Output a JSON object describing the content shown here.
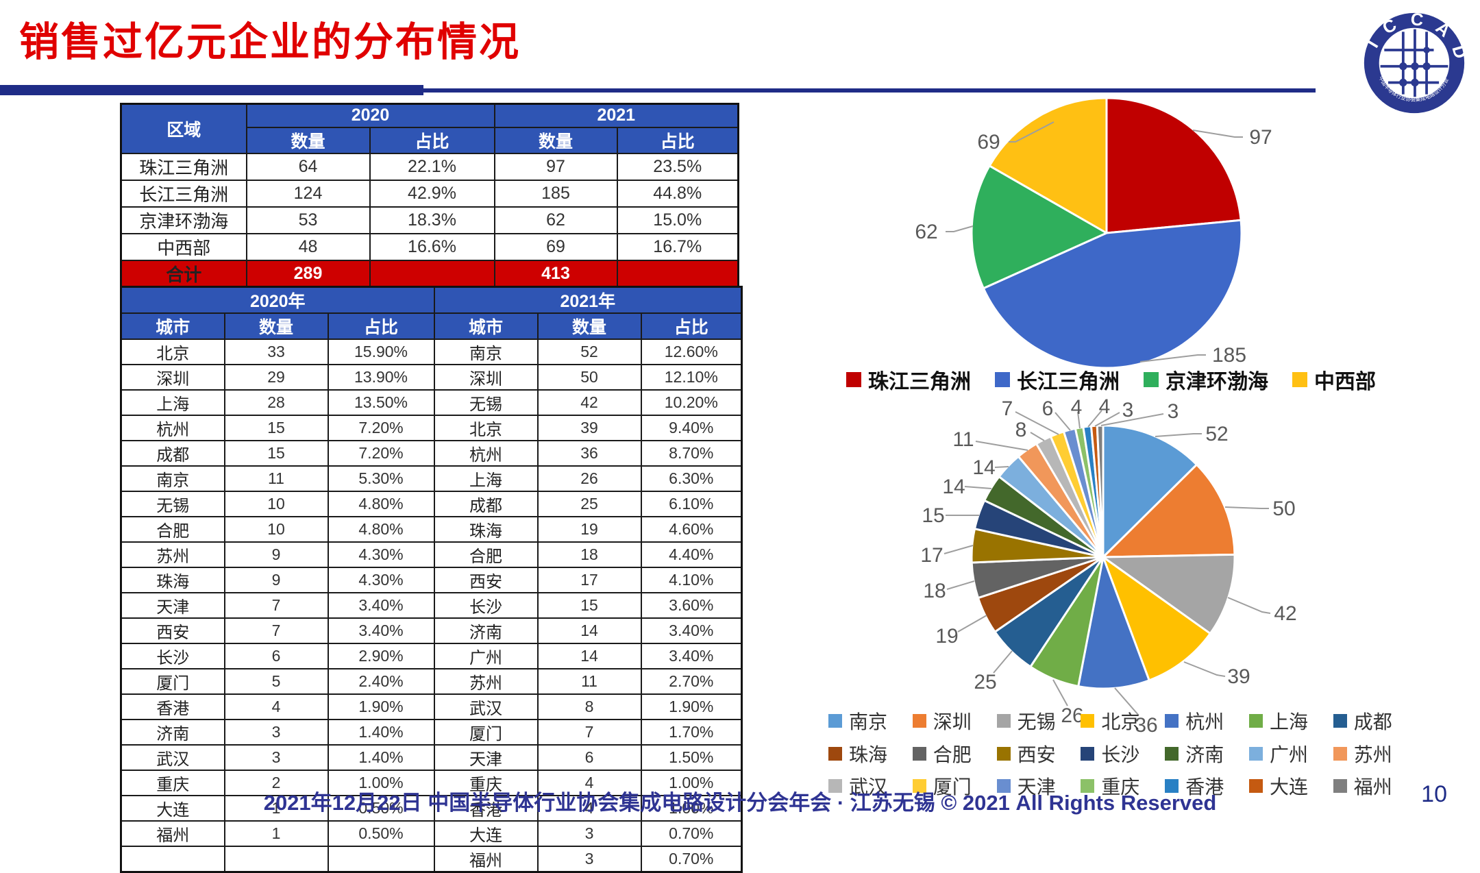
{
  "slide": {
    "title": "销售过亿元企业的分布情况",
    "footer": "2021年12月22日 中国半导体行业协会集成电路设计分会年会 · 江苏无锡 © 2021 All Rights Reserved",
    "page_number": "10",
    "logo_text": "I C C A D",
    "logo_subtext": "中国半导体行业协会集成电路设计分会"
  },
  "region_table": {
    "headers": {
      "region": "区域",
      "y2020": "2020",
      "y2021": "2021",
      "count": "数量",
      "share": "占比"
    },
    "rows": [
      {
        "region": "珠江三角洲",
        "c2020": "64",
        "p2020": "22.1%",
        "c2021": "97",
        "p2021": "23.5%"
      },
      {
        "region": "长江三角洲",
        "c2020": "124",
        "p2020": "42.9%",
        "c2021": "185",
        "p2021": "44.8%"
      },
      {
        "region": "京津环渤海",
        "c2020": "53",
        "p2020": "18.3%",
        "c2021": "62",
        "p2021": "15.0%"
      },
      {
        "region": "中西部",
        "c2020": "48",
        "p2020": "16.6%",
        "c2021": "69",
        "p2021": "16.7%"
      }
    ],
    "total": {
      "label": "合计",
      "c2020": "289",
      "p2020": "",
      "c2021": "413",
      "p2021": ""
    }
  },
  "city_table": {
    "headers": {
      "y2020": "2020年",
      "y2021": "2021年",
      "city": "城市",
      "count": "数量",
      "share": "占比"
    },
    "rows": [
      {
        "city1": "北京",
        "n1": "33",
        "p1": "15.90%",
        "city2": "南京",
        "n2": "52",
        "p2": "12.60%"
      },
      {
        "city1": "深圳",
        "n1": "29",
        "p1": "13.90%",
        "city2": "深圳",
        "n2": "50",
        "p2": "12.10%"
      },
      {
        "city1": "上海",
        "n1": "28",
        "p1": "13.50%",
        "city2": "无锡",
        "n2": "42",
        "p2": "10.20%"
      },
      {
        "city1": "杭州",
        "n1": "15",
        "p1": "7.20%",
        "city2": "北京",
        "n2": "39",
        "p2": "9.40%"
      },
      {
        "city1": "成都",
        "n1": "15",
        "p1": "7.20%",
        "city2": "杭州",
        "n2": "36",
        "p2": "8.70%"
      },
      {
        "city1": "南京",
        "n1": "11",
        "p1": "5.30%",
        "city2": "上海",
        "n2": "26",
        "p2": "6.30%"
      },
      {
        "city1": "无锡",
        "n1": "10",
        "p1": "4.80%",
        "city2": "成都",
        "n2": "25",
        "p2": "6.10%"
      },
      {
        "city1": "合肥",
        "n1": "10",
        "p1": "4.80%",
        "city2": "珠海",
        "n2": "19",
        "p2": "4.60%"
      },
      {
        "city1": "苏州",
        "n1": "9",
        "p1": "4.30%",
        "city2": "合肥",
        "n2": "18",
        "p2": "4.40%"
      },
      {
        "city1": "珠海",
        "n1": "9",
        "p1": "4.30%",
        "city2": "西安",
        "n2": "17",
        "p2": "4.10%"
      },
      {
        "city1": "天津",
        "n1": "7",
        "p1": "3.40%",
        "city2": "长沙",
        "n2": "15",
        "p2": "3.60%"
      },
      {
        "city1": "西安",
        "n1": "7",
        "p1": "3.40%",
        "city2": "济南",
        "n2": "14",
        "p2": "3.40%"
      },
      {
        "city1": "长沙",
        "n1": "6",
        "p1": "2.90%",
        "city2": "广州",
        "n2": "14",
        "p2": "3.40%"
      },
      {
        "city1": "厦门",
        "n1": "5",
        "p1": "2.40%",
        "city2": "苏州",
        "n2": "11",
        "p2": "2.70%"
      },
      {
        "city1": "香港",
        "n1": "4",
        "p1": "1.90%",
        "city2": "武汉",
        "n2": "8",
        "p2": "1.90%"
      },
      {
        "city1": "济南",
        "n1": "3",
        "p1": "1.40%",
        "city2": "厦门",
        "n2": "7",
        "p2": "1.70%"
      },
      {
        "city1": "武汉",
        "n1": "3",
        "p1": "1.40%",
        "city2": "天津",
        "n2": "6",
        "p2": "1.50%"
      },
      {
        "city1": "重庆",
        "n1": "2",
        "p1": "1.00%",
        "city2": "重庆",
        "n2": "4",
        "p2": "1.00%"
      },
      {
        "city1": "大连",
        "n1": "1",
        "p1": "0.50%",
        "city2": "香港",
        "n2": "4",
        "p2": "1.00%"
      },
      {
        "city1": "福州",
        "n1": "1",
        "p1": "0.50%",
        "city2": "大连",
        "n2": "3",
        "p2": "0.70%"
      },
      {
        "city1": "",
        "n1": "",
        "p1": "",
        "city2": "福州",
        "n2": "3",
        "p2": "0.70%"
      }
    ]
  },
  "chart_data": [
    {
      "type": "pie",
      "labels": [
        "珠江三角洲",
        "长江三角洲",
        "京津环渤海",
        "中西部"
      ],
      "values": [
        97,
        185,
        62,
        69
      ],
      "colors": [
        "#C00000",
        "#3E68C8",
        "#2FAF5C",
        "#FFC013"
      ],
      "data_labels": "values",
      "legend_position": "bottom",
      "start_angle_deg": 0,
      "direction": "clockwise"
    },
    {
      "type": "pie",
      "labels": [
        "南京",
        "深圳",
        "无锡",
        "北京",
        "杭州",
        "上海",
        "成都",
        "珠海",
        "合肥",
        "西安",
        "长沙",
        "济南",
        "广州",
        "苏州",
        "武汉",
        "厦门",
        "天津",
        "重庆",
        "香港",
        "大连",
        "福州"
      ],
      "values": [
        52,
        50,
        42,
        39,
        36,
        26,
        25,
        19,
        18,
        17,
        15,
        14,
        14,
        11,
        8,
        7,
        6,
        4,
        4,
        3,
        3
      ],
      "colors": [
        "#5B9BD5",
        "#ED7D31",
        "#A5A5A5",
        "#FFC000",
        "#4472C4",
        "#70AD47",
        "#255E91",
        "#9E480E",
        "#636363",
        "#997300",
        "#264478",
        "#43682B",
        "#7CAFDD",
        "#F1975A",
        "#B7B7B7",
        "#FFCD33",
        "#698ED0",
        "#8CC168",
        "#2980C4",
        "#C55A11",
        "#7F7F7F"
      ],
      "data_labels": "values",
      "legend_position": "bottom",
      "start_angle_deg": 0,
      "direction": "clockwise"
    }
  ]
}
